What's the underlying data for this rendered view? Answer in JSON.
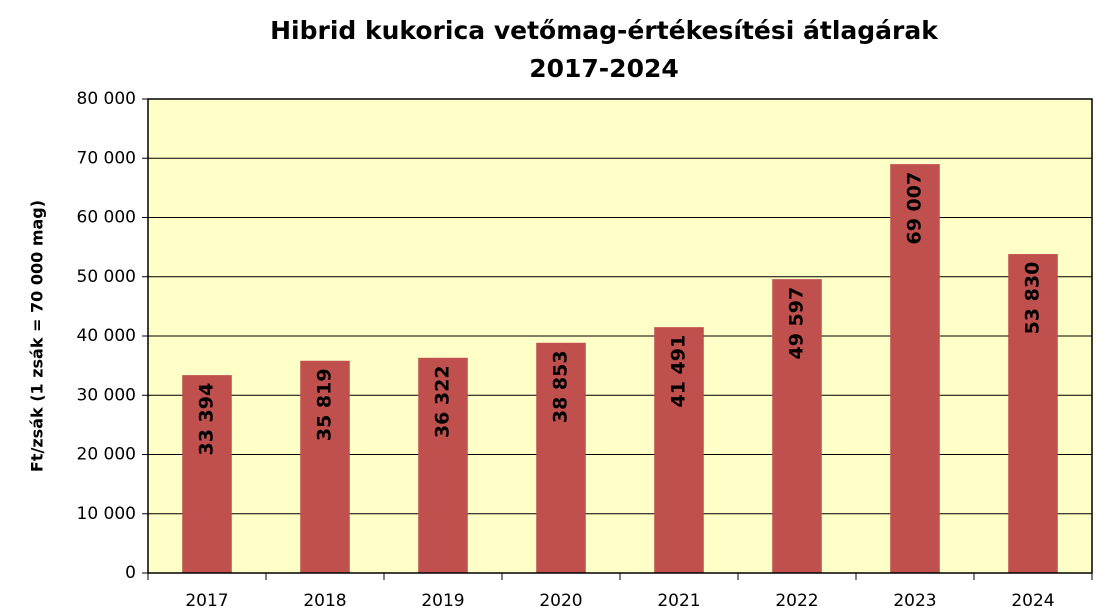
{
  "chart_data": {
    "type": "bar",
    "title": "Hibrid kukorica vetőmag-értékesítési átlagárak",
    "subtitle": "2017-2024",
    "y_label": "Ft/zsák (1 zsák = 70 000 mag)",
    "categories": [
      "2017",
      "2018",
      "2019",
      "2020",
      "2021",
      "2022",
      "2023",
      "2024"
    ],
    "values": [
      33394,
      35819,
      36322,
      38853,
      41491,
      49597,
      69007,
      53830
    ],
    "value_labels": [
      "33 394",
      "35 819",
      "36 322",
      "38 853",
      "41 491",
      "49 597",
      "69 007",
      "53 830"
    ],
    "color": "#c0504d",
    "ylim": [
      0,
      80000
    ],
    "yticks": [
      0,
      {
        "value": 10000,
        "label": "10 000"
      },
      {
        "value": 20000,
        "label": "20 000"
      },
      {
        "value": 30000,
        "label": "30 000"
      },
      {
        "value": 40000,
        "label": "40 000"
      },
      {
        "value": 50000,
        "label": "50 000"
      },
      {
        "value": 60000,
        "label": "60 000"
      },
      {
        "value": 70000,
        "label": "70 000"
      },
      {
        "value": 80000,
        "label": "80 000"
      }
    ],
    "grid": true
  }
}
